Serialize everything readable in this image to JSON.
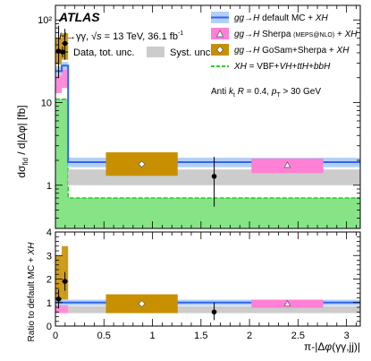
{
  "chart_data": [
    {
      "id": "top",
      "type": "line",
      "atlas_label": "ATLAS",
      "info_line": "H→γγ, √s = 13 TeV,  36.1 fb⁻¹",
      "data_label": "Data, tot. unc.",
      "syst_label": "Syst. unc.",
      "ylabel": "dσfid / d|Δφ|  [fb]",
      "yscale": "log",
      "ylim": [
        0.3,
        150
      ],
      "xlim": [
        0,
        3.14159
      ],
      "y_ticks": [
        {
          "value": 1,
          "label": "1"
        },
        {
          "value": 10,
          "label": "10"
        },
        {
          "value": 100,
          "label": "10²"
        }
      ],
      "jet_note": "Anti kt R = 0.4, pT > 30 GeV",
      "bin_edges": [
        0,
        0.0654,
        0.1309,
        3.14159
      ],
      "series": [
        {
          "name": "gg→H default MC + XH",
          "color": "#2e66ef",
          "band_color": "#b4cff6",
          "values": [
            24,
            28,
            1.9
          ],
          "band": [
            [
              21,
              27.5
            ],
            [
              25,
              31
            ],
            [
              1.65,
              2.15
            ]
          ]
        },
        {
          "name": "gg→H Sherpa (MEPS@NLO) + XH",
          "color": "#ff80d5",
          "values": [
            18,
            21,
            1.75
          ],
          "band": [
            [
              13,
              24
            ],
            [
              15,
              27
            ],
            [
              1.4,
              2.1
            ]
          ]
        },
        {
          "name": "gg→H GoSam+Sherpa + XH",
          "color": "#c89000",
          "values": [
            45,
            52,
            1.8
          ],
          "band": [
            [
              29,
              61
            ],
            [
              33,
              69
            ],
            [
              1.3,
              2.5
            ]
          ]
        },
        {
          "name": "XH = VBF+VH+ttH+bbH",
          "color": "#36c836",
          "values": [
            11,
            11,
            0.7
          ]
        }
      ],
      "theory_points": [
        {
          "series": 1,
          "x": 2.39,
          "y": 1.75,
          "box_x": [
            2.02,
            2.76
          ],
          "box_y": [
            1.4,
            2.1
          ]
        },
        {
          "series": 2,
          "x": 0.89,
          "y": 1.8,
          "box_x": [
            0.52,
            1.26
          ],
          "box_y": [
            1.3,
            2.5
          ]
        }
      ],
      "syst_band": [
        1.0,
        1.55
      ],
      "data": [
        {
          "x": 0.0327,
          "y": 42,
          "xerr": 0.0327,
          "ylo": 20,
          "yhi": 85
        },
        {
          "x": 0.098,
          "y": 52,
          "xerr": 0.0327,
          "ylo": 33,
          "yhi": 78
        },
        {
          "x": 1.636,
          "y": 1.28,
          "xerr": 0,
          "ylo": 0.55,
          "yhi": 2.2
        }
      ]
    },
    {
      "id": "ratio",
      "type": "line",
      "ylabel": "Ratio to default MC + XH",
      "xlabel": "π-|Δφ(γγ,jj)|",
      "xlim": [
        0,
        3.14159
      ],
      "ylim": [
        0,
        4
      ],
      "y_ticks": [
        0,
        1,
        2,
        3,
        4
      ],
      "x_ticks": [
        0,
        0.5,
        1,
        1.5,
        2,
        2.5,
        3
      ],
      "bin_edges": [
        0,
        0.0654,
        0.1309,
        3.14159
      ],
      "series": [
        {
          "name": "gg→H default MC + XH",
          "color": "#2e66ef",
          "band_color": "#b4cff6",
          "values": [
            1,
            1,
            1
          ],
          "band": [
            [
              0.88,
              1.12
            ],
            [
              0.86,
              1.14
            ],
            [
              0.88,
              1.12
            ]
          ]
        },
        {
          "name": "gg→H Sherpa (MEPS@NLO) + XH",
          "color": "#ff80d5",
          "values": [
            0.75,
            0.75,
            0.95
          ],
          "band": [
            [
              0.55,
              1.0
            ],
            [
              0.55,
              1.0
            ],
            [
              0.75,
              1.15
            ]
          ]
        },
        {
          "name": "gg→H GoSam+Sherpa + XH",
          "color": "#c89000",
          "values": [
            1.9,
            1.9,
            0.95
          ],
          "band": [
            [
              1.05,
              3.0
            ],
            [
              1.05,
              3.4
            ],
            [
              0.7,
              1.3
            ]
          ]
        }
      ],
      "theory_points": [
        {
          "series": 1,
          "x": 2.39,
          "y": 0.95,
          "box_x": [
            2.02,
            2.76
          ],
          "box_y": [
            0.78,
            1.12
          ]
        },
        {
          "series": 2,
          "x": 0.89,
          "y": 0.95,
          "box_x": [
            0.52,
            1.26
          ],
          "box_y": [
            0.55,
            1.35
          ]
        }
      ],
      "syst_band": [
        0.55,
        0.85
      ],
      "data": [
        {
          "x": 0.0327,
          "y": 1.15,
          "xerr": 0.0327,
          "ylo": 0.75,
          "yhi": 1.55
        },
        {
          "x": 0.098,
          "y": 1.9,
          "xerr": 0.0327,
          "ylo": 1.5,
          "yhi": 2.3
        },
        {
          "x": 1.636,
          "y": 0.6,
          "xerr": 0,
          "ylo": 0.25,
          "yhi": 1.0
        }
      ]
    }
  ]
}
